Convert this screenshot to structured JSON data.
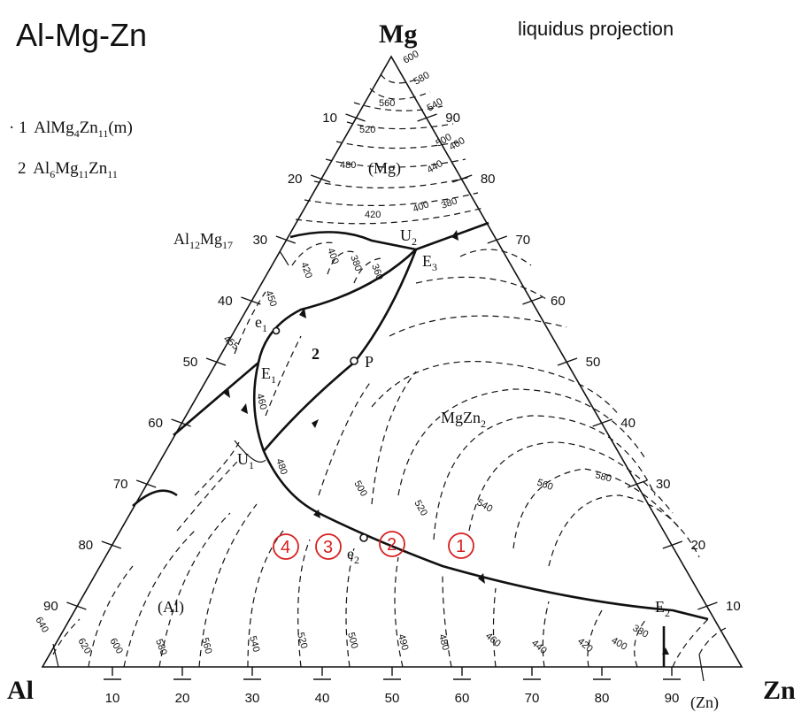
{
  "title": "Al-Mg-Zn",
  "subtitle": "liquidus projection",
  "corners": {
    "top": "Mg",
    "left": "Al",
    "right": "Zn"
  },
  "axis_ticks": {
    "bottom": [
      "10",
      "20",
      "30",
      "40",
      "50",
      "60",
      "70",
      "80",
      "90"
    ],
    "left": [
      "90",
      "80",
      "70",
      "60",
      "50",
      "40",
      "30",
      "20",
      "10"
    ],
    "right": [
      "90",
      "80",
      "70",
      "60",
      "50",
      "40",
      "30",
      "20",
      "10"
    ]
  },
  "legend": [
    {
      "prefix": "· 1",
      "text": "AlMg4Zn11(m)"
    },
    {
      "prefix": "2",
      "text": "Al6Mg11Zn11"
    }
  ],
  "phase_labels": {
    "mg": "(Mg)",
    "al": "(Al)",
    "zn": "(Zn)",
    "al12mg17": "Al12Mg17",
    "mgzn2": "MgZn2",
    "phase2": "2"
  },
  "points": {
    "U2": "U",
    "E3": "E",
    "e1": "e",
    "E1": "E",
    "P": "P",
    "U1": "U",
    "e2": "e",
    "E2": "E"
  },
  "isotherms": [
    "600",
    "580",
    "560",
    "540",
    "520",
    "500",
    "480",
    "460",
    "440",
    "420",
    "400",
    "380",
    "360",
    "380",
    "400",
    "420",
    "450",
    "455",
    "460",
    "480",
    "500",
    "520",
    "540",
    "560",
    "580",
    "640",
    "620",
    "600",
    "580",
    "560",
    "540",
    "520",
    "500",
    "490",
    "480",
    "460",
    "440",
    "420",
    "400",
    "380"
  ],
  "markers": [
    "1",
    "2",
    "3",
    "4"
  ],
  "colors": {
    "marker": "#d62020",
    "ink": "#111111"
  }
}
